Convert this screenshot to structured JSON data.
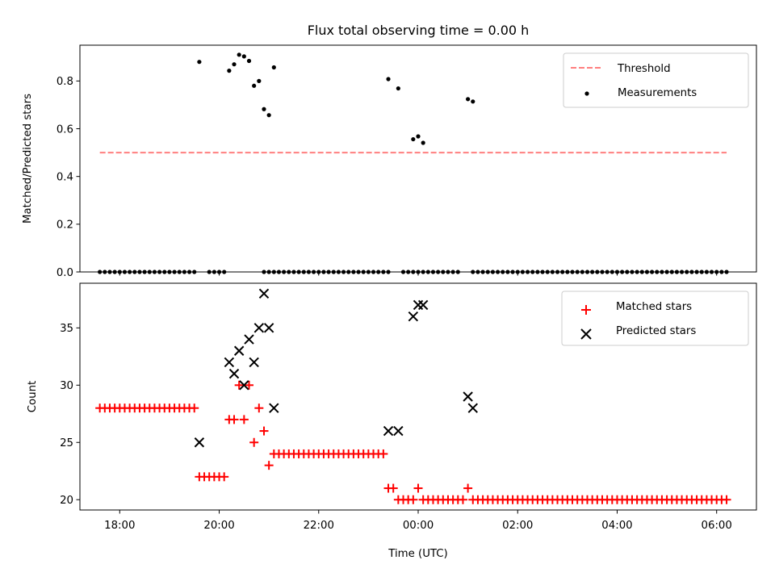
{
  "chart_data": [
    {
      "type": "scatter",
      "title": "Flux total observing time = 0.00 h",
      "xlabel": "",
      "ylabel": "Matched/Predicted stars",
      "xlim": [
        "17:12",
        "06:48"
      ],
      "ylim": [
        0,
        0.95
      ],
      "yticks": [
        0.0,
        0.2,
        0.4,
        0.6,
        0.8
      ],
      "yticklabels": [
        "0.0",
        "0.2",
        "0.4",
        "0.6",
        "0.8"
      ],
      "legend": {
        "placement": "upper right",
        "entries": [
          "Threshold",
          "Measurements"
        ]
      },
      "threshold": {
        "name": "Threshold",
        "value": 0.5,
        "x_range": [
          "17:36",
          "06:12"
        ],
        "color": "#ff7f7f",
        "style": "dashed"
      },
      "zero_x": [
        "17:36",
        "17:42",
        "17:48",
        "17:54",
        "18:00",
        "18:06",
        "18:12",
        "18:18",
        "18:24",
        "18:30",
        "18:36",
        "18:42",
        "18:48",
        "18:54",
        "19:00",
        "19:06",
        "19:12",
        "19:18",
        "19:24",
        "19:30",
        "19:48",
        "19:54",
        "20:00",
        "20:06",
        "20:54",
        "21:00",
        "21:06",
        "21:12",
        "21:18",
        "21:24",
        "21:30",
        "21:36",
        "21:42",
        "21:48",
        "21:54",
        "22:00",
        "22:06",
        "22:12",
        "22:18",
        "22:24",
        "22:30",
        "22:36",
        "22:42",
        "22:48",
        "22:54",
        "23:00",
        "23:06",
        "23:12",
        "23:18",
        "23:24",
        "23:42",
        "23:48",
        "23:54",
        "00:00",
        "00:06",
        "00:12",
        "00:18",
        "00:24",
        "00:30",
        "00:36",
        "00:42",
        "00:48",
        "01:06",
        "01:12",
        "01:18",
        "01:24",
        "01:30",
        "01:36",
        "01:42",
        "01:48",
        "01:54",
        "02:00",
        "02:06",
        "02:12",
        "02:18",
        "02:24",
        "02:30",
        "02:36",
        "02:42",
        "02:48",
        "02:54",
        "03:00",
        "03:06",
        "03:12",
        "03:18",
        "03:24",
        "03:30",
        "03:36",
        "03:42",
        "03:48",
        "03:54",
        "04:00",
        "04:06",
        "04:12",
        "04:18",
        "04:24",
        "04:30",
        "04:36",
        "04:42",
        "04:48",
        "04:54",
        "05:00",
        "05:06",
        "05:12",
        "05:18",
        "05:24",
        "05:30",
        "05:36",
        "05:42",
        "05:48",
        "05:54",
        "06:00",
        "06:06",
        "06:12"
      ],
      "series": [
        {
          "name": "Measurements",
          "color": "#000000",
          "points": [
            [
              "19:36",
              0.88
            ],
            [
              "20:12",
              0.843
            ],
            [
              "20:18",
              0.87
            ],
            [
              "20:24",
              0.91
            ],
            [
              "20:30",
              0.903
            ],
            [
              "20:36",
              0.884
            ],
            [
              "20:42",
              0.78
            ],
            [
              "20:48",
              0.8
            ],
            [
              "20:54",
              0.682
            ],
            [
              "21:00",
              0.657
            ],
            [
              "21:06",
              0.857
            ],
            [
              "23:24",
              0.808
            ],
            [
              "23:36",
              0.769
            ],
            [
              "23:54",
              0.556
            ],
            [
              "00:00",
              0.568
            ],
            [
              "00:06",
              0.541
            ],
            [
              "01:00",
              0.724
            ],
            [
              "01:06",
              0.714
            ]
          ]
        }
      ]
    },
    {
      "type": "scatter",
      "title": "",
      "xlabel": "Time (UTC)",
      "ylabel": "Count",
      "xlim": [
        "17:12",
        "06:48"
      ],
      "ylim": [
        19.1,
        38.9
      ],
      "xticks": [
        "18:00",
        "20:00",
        "22:00",
        "00:00",
        "02:00",
        "04:00",
        "06:00"
      ],
      "yticks": [
        20,
        25,
        30,
        35
      ],
      "yticklabels": [
        "20",
        "25",
        "30",
        "35"
      ],
      "legend": {
        "placement": "upper right",
        "entries": [
          "Matched stars",
          "Predicted stars"
        ]
      },
      "series": [
        {
          "name": "Matched stars",
          "marker": "plus",
          "color": "#ff0000",
          "points": [
            [
              "17:36",
              28
            ],
            [
              "17:42",
              28
            ],
            [
              "17:48",
              28
            ],
            [
              "17:54",
              28
            ],
            [
              "18:00",
              28
            ],
            [
              "18:06",
              28
            ],
            [
              "18:12",
              28
            ],
            [
              "18:18",
              28
            ],
            [
              "18:24",
              28
            ],
            [
              "18:30",
              28
            ],
            [
              "18:36",
              28
            ],
            [
              "18:42",
              28
            ],
            [
              "18:48",
              28
            ],
            [
              "18:54",
              28
            ],
            [
              "19:00",
              28
            ],
            [
              "19:06",
              28
            ],
            [
              "19:12",
              28
            ],
            [
              "19:18",
              28
            ],
            [
              "19:24",
              28
            ],
            [
              "19:30",
              28
            ],
            [
              "19:36",
              22
            ],
            [
              "19:42",
              22
            ],
            [
              "19:48",
              22
            ],
            [
              "19:54",
              22
            ],
            [
              "20:00",
              22
            ],
            [
              "20:06",
              22
            ],
            [
              "20:12",
              27
            ],
            [
              "20:18",
              27
            ],
            [
              "20:24",
              30
            ],
            [
              "20:30",
              27
            ],
            [
              "20:36",
              30
            ],
            [
              "20:42",
              25
            ],
            [
              "20:48",
              28
            ],
            [
              "20:54",
              26
            ],
            [
              "21:00",
              23
            ],
            [
              "21:06",
              24
            ],
            [
              "21:12",
              24
            ],
            [
              "21:18",
              24
            ],
            [
              "21:24",
              24
            ],
            [
              "21:30",
              24
            ],
            [
              "21:36",
              24
            ],
            [
              "21:42",
              24
            ],
            [
              "21:48",
              24
            ],
            [
              "21:54",
              24
            ],
            [
              "22:00",
              24
            ],
            [
              "22:06",
              24
            ],
            [
              "22:12",
              24
            ],
            [
              "22:18",
              24
            ],
            [
              "22:24",
              24
            ],
            [
              "22:30",
              24
            ],
            [
              "22:36",
              24
            ],
            [
              "22:42",
              24
            ],
            [
              "22:48",
              24
            ],
            [
              "22:54",
              24
            ],
            [
              "23:00",
              24
            ],
            [
              "23:06",
              24
            ],
            [
              "23:12",
              24
            ],
            [
              "23:18",
              24
            ],
            [
              "23:24",
              21
            ],
            [
              "23:30",
              21
            ],
            [
              "23:36",
              20
            ],
            [
              "23:42",
              20
            ],
            [
              "23:48",
              20
            ],
            [
              "23:54",
              20
            ],
            [
              "00:00",
              21
            ],
            [
              "00:06",
              20
            ],
            [
              "00:12",
              20
            ],
            [
              "00:18",
              20
            ],
            [
              "00:24",
              20
            ],
            [
              "00:30",
              20
            ],
            [
              "00:36",
              20
            ],
            [
              "00:42",
              20
            ],
            [
              "00:48",
              20
            ],
            [
              "00:54",
              20
            ],
            [
              "01:00",
              21
            ],
            [
              "01:06",
              20
            ],
            [
              "01:12",
              20
            ],
            [
              "01:18",
              20
            ],
            [
              "01:24",
              20
            ],
            [
              "01:30",
              20
            ],
            [
              "01:36",
              20
            ],
            [
              "01:42",
              20
            ],
            [
              "01:48",
              20
            ],
            [
              "01:54",
              20
            ],
            [
              "02:00",
              20
            ],
            [
              "02:06",
              20
            ],
            [
              "02:12",
              20
            ],
            [
              "02:18",
              20
            ],
            [
              "02:24",
              20
            ],
            [
              "02:30",
              20
            ],
            [
              "02:36",
              20
            ],
            [
              "02:42",
              20
            ],
            [
              "02:48",
              20
            ],
            [
              "02:54",
              20
            ],
            [
              "03:00",
              20
            ],
            [
              "03:06",
              20
            ],
            [
              "03:12",
              20
            ],
            [
              "03:18",
              20
            ],
            [
              "03:24",
              20
            ],
            [
              "03:30",
              20
            ],
            [
              "03:36",
              20
            ],
            [
              "03:42",
              20
            ],
            [
              "03:48",
              20
            ],
            [
              "03:54",
              20
            ],
            [
              "04:00",
              20
            ],
            [
              "04:06",
              20
            ],
            [
              "04:12",
              20
            ],
            [
              "04:18",
              20
            ],
            [
              "04:24",
              20
            ],
            [
              "04:30",
              20
            ],
            [
              "04:36",
              20
            ],
            [
              "04:42",
              20
            ],
            [
              "04:48",
              20
            ],
            [
              "04:54",
              20
            ],
            [
              "05:00",
              20
            ],
            [
              "05:06",
              20
            ],
            [
              "05:12",
              20
            ],
            [
              "05:18",
              20
            ],
            [
              "05:24",
              20
            ],
            [
              "05:30",
              20
            ],
            [
              "05:36",
              20
            ],
            [
              "05:42",
              20
            ],
            [
              "05:48",
              20
            ],
            [
              "05:54",
              20
            ],
            [
              "06:00",
              20
            ],
            [
              "06:06",
              20
            ],
            [
              "06:12",
              20
            ]
          ]
        },
        {
          "name": "Predicted stars",
          "marker": "x",
          "color": "#000000",
          "points": [
            [
              "19:36",
              25
            ],
            [
              "20:12",
              32
            ],
            [
              "20:18",
              31
            ],
            [
              "20:24",
              33
            ],
            [
              "20:30",
              30
            ],
            [
              "20:36",
              34
            ],
            [
              "20:42",
              32
            ],
            [
              "20:48",
              35
            ],
            [
              "20:54",
              38
            ],
            [
              "21:00",
              35
            ],
            [
              "21:06",
              28
            ],
            [
              "23:24",
              26
            ],
            [
              "23:36",
              26
            ],
            [
              "23:54",
              36
            ],
            [
              "00:00",
              37
            ],
            [
              "00:06",
              37
            ],
            [
              "01:00",
              29
            ],
            [
              "01:06",
              28
            ]
          ]
        }
      ]
    }
  ]
}
